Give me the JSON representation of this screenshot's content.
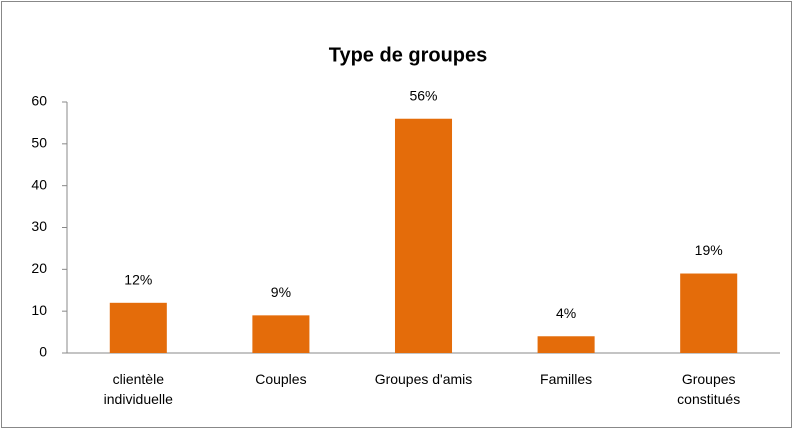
{
  "chart_data": {
    "type": "bar",
    "title": "Type de groupes",
    "categories": [
      "clientèle individuelle",
      "Couples",
      "Groupes d'amis",
      "Familles",
      "Groupes constitués"
    ],
    "values": [
      12,
      9,
      56,
      4,
      19
    ],
    "value_labels": [
      "12%",
      "9%",
      "56%",
      "4%",
      "19%"
    ],
    "color": "#e46c0a",
    "ylim": [
      0,
      60
    ],
    "yticks": [
      0,
      10,
      20,
      30,
      40,
      50,
      60
    ],
    "grid": false
  }
}
